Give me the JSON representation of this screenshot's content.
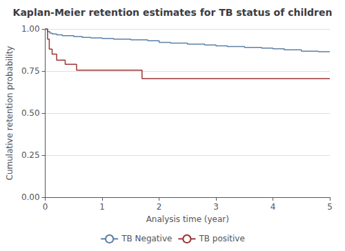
{
  "chart_data": {
    "type": "step",
    "title": "Kaplan-Meier retention estimates for TB status of children",
    "xlabel": "Analysis time (year)",
    "ylabel": "Cumulative retention probability",
    "xlim": [
      0,
      5
    ],
    "ylim": [
      0.0,
      1.0
    ],
    "xticks": [
      0,
      1,
      2,
      3,
      4,
      5
    ],
    "yticks": [
      {
        "value": 0.0,
        "label": "0.00"
      },
      0.25,
      {
        "value": 0.5,
        "label": "0.50"
      },
      0.75,
      {
        "value": 1.0,
        "label": "1.00"
      }
    ],
    "grid": "y",
    "legend": "bottom",
    "series": [
      {
        "name": "TB Negative",
        "color": "#5b7fa6",
        "x": [
          0,
          0.04,
          0.08,
          0.12,
          0.2,
          0.3,
          0.5,
          0.65,
          0.8,
          1.0,
          1.2,
          1.5,
          1.8,
          2.0,
          2.2,
          2.5,
          2.8,
          3.0,
          3.2,
          3.5,
          3.8,
          4.0,
          4.2,
          4.5,
          4.8,
          5.0
        ],
        "values": [
          1.0,
          0.985,
          0.975,
          0.97,
          0.965,
          0.96,
          0.955,
          0.95,
          0.947,
          0.944,
          0.94,
          0.935,
          0.93,
          0.92,
          0.916,
          0.91,
          0.905,
          0.9,
          0.896,
          0.89,
          0.886,
          0.882,
          0.876,
          0.868,
          0.865,
          0.865
        ]
      },
      {
        "name": "TB positive",
        "color": "#9b3535",
        "x": [
          0,
          0.04,
          0.07,
          0.12,
          0.2,
          0.35,
          0.55,
          1.65,
          1.7,
          5.0
        ],
        "values": [
          1.0,
          0.94,
          0.88,
          0.85,
          0.815,
          0.79,
          0.755,
          0.755,
          0.705,
          0.705
        ]
      }
    ]
  }
}
